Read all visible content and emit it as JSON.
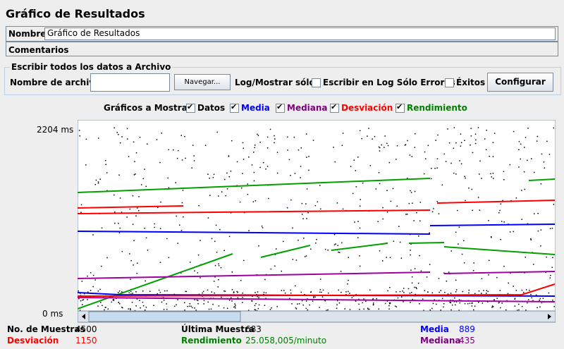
{
  "header": {
    "title": "Gráfico de Resultados"
  },
  "name_row": {
    "label": "Nombre:",
    "value": "Gráfico de Resultados"
  },
  "comments_row": {
    "label": "Comentarios"
  },
  "file_group": {
    "title": "Escribir todos los datos a Archivo",
    "file_label": "Nombre de archivo",
    "browse_button": "Navegar...",
    "log_label": "Log/Mostrar sólo:",
    "errors_checkbox": "Escribir en Log Sólo Errores",
    "success_checkbox": "Éxitos",
    "configure_button": "Configurar"
  },
  "graphs": {
    "label": "Gráficos a Mostrar",
    "options": [
      "Datos",
      "Media",
      "Mediana",
      "Desviación",
      "Rendimiento"
    ]
  },
  "chart": {
    "y_max_label": "2204 ms",
    "y_min_label": "0 ms"
  },
  "stats": {
    "samples_label": "No. de Muestras",
    "samples": "4500",
    "last_label": "Última Muestra",
    "last": "683",
    "mean_label": "Media",
    "mean": "889",
    "deviation_label": "Desviación",
    "deviation": "1150",
    "throughput_label": "Rendimiento",
    "throughput": "25.058,005/minuto",
    "median_label": "Mediana",
    "median": "435"
  }
}
